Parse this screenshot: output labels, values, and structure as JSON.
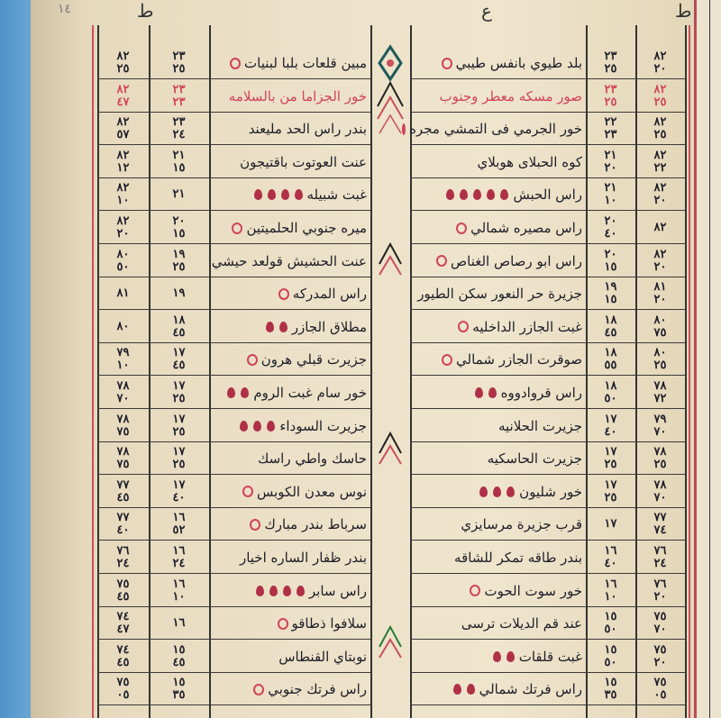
{
  "header": {
    "page_number": "١٤",
    "left_mark": "ط",
    "right_mark": "ع",
    "far_right_mark": "ط"
  },
  "left_table": {
    "rows": [
      {
        "name": "مبين قلعات بلبا لبنيات",
        "lat": "٢٣\n٢٥",
        "lon": "٨٢\n٢٥",
        "circle": true,
        "drops": 0,
        "red": false
      },
      {
        "name": "خور الجزاما من بالسلامه",
        "lat": "٢٣\n٢٣",
        "lon": "٨٢\n٤٧",
        "circle": false,
        "drops": 0,
        "red": true
      },
      {
        "name": "بندر راس الحد مليعند",
        "lat": "٢٣\n٢٤",
        "lon": "٨٢\n٥٧",
        "circle": false,
        "drops": 0,
        "red": false
      },
      {
        "name": "عنت العوتوت باقتيجون",
        "lat": "٢١\n١٥",
        "lon": "٨٢\n١٢",
        "circle": false,
        "drops": 0,
        "red": false
      },
      {
        "name": "غبت شبيله",
        "lat": "٢١",
        "lon": "٨٢\n١٠",
        "circle": false,
        "drops": 4,
        "red": false
      },
      {
        "name": "ميره جنوبي الحلميتين",
        "lat": "٢٠\n١٥",
        "lon": "٨٢\n٢٠",
        "circle": true,
        "drops": 0,
        "red": false
      },
      {
        "name": "عنت الحشيش قولعد حيشي",
        "lat": "١٩\n٢٥",
        "lon": "٨٠\n٥٠",
        "circle": false,
        "drops": 0,
        "red": false
      },
      {
        "name": "راس المدركه",
        "lat": "١٩",
        "lon": "٨١",
        "circle": true,
        "drops": 0,
        "red": false
      },
      {
        "name": "مطلاق الجازر",
        "lat": "١٨\n٤٥",
        "lon": "٨٠",
        "circle": false,
        "drops": 2,
        "red": false
      },
      {
        "name": "جزيرت قبلي هرون",
        "lat": "١٧\n٤٥",
        "lon": "٧٩\n١٠",
        "circle": true,
        "drops": 0,
        "red": false
      },
      {
        "name": "خور سام غبت الروم",
        "lat": "١٧\n٢٥",
        "lon": "٧٨\n٧٠",
        "circle": false,
        "drops": 2,
        "red": false
      },
      {
        "name": "جزيرت السوداء",
        "lat": "١٧\n٢٥",
        "lon": "٧٨\n٧٥",
        "circle": false,
        "drops": 3,
        "red": false
      },
      {
        "name": "حاسك واطي راسك",
        "lat": "١٧\n٢٥",
        "lon": "٧٨\n٧٥",
        "circle": false,
        "drops": 0,
        "red": false
      },
      {
        "name": "نوس معدن الكوبس",
        "lat": "١٧\n٤٠",
        "lon": "٧٧\n٤٥",
        "circle": true,
        "drops": 0,
        "red": false
      },
      {
        "name": "سرباط بندر مبارك",
        "lat": "١٦\n٥٢",
        "lon": "٧٧\n٤٠",
        "circle": true,
        "drops": 0,
        "red": false
      },
      {
        "name": "بندر ظفار الساره اخيار",
        "lat": "١٦\n٢٤",
        "lon": "٧٦\n٢٤",
        "circle": false,
        "drops": 0,
        "red": false
      },
      {
        "name": "راس سابر",
        "lat": "١٦\n١٠",
        "lon": "٧٥\n٤٥",
        "circle": false,
        "drops": 4,
        "red": false
      },
      {
        "name": "سلافوا ذطاقو",
        "lat": "١٦",
        "lon": "٧٤\n٤٧",
        "circle": true,
        "drops": 0,
        "red": false
      },
      {
        "name": "نوبتاي القنطاس",
        "lat": "١٥\n٤٥",
        "lon": "٧٤\n٤٥",
        "circle": false,
        "drops": 0,
        "red": false
      },
      {
        "name": "راس فرتك جنوبي",
        "lat": "١٥\n٣٥",
        "lon": "٧٥\n٠٥",
        "circle": true,
        "drops": 0,
        "red": false
      }
    ]
  },
  "right_table": {
    "rows": [
      {
        "name": "بلد طيوي بانفس طيبي",
        "lat": "٢٣\n٢٥",
        "lon": "٨٢\n٢٠",
        "circle": true,
        "drops": 0,
        "red": false
      },
      {
        "name": "صور مسكه معطر وجنوب",
        "lat": "٢٣\n٢٥",
        "lon": "٨٢\n٢٥",
        "circle": false,
        "drops": 0,
        "red": true
      },
      {
        "name": "خور الجرمي فى التمشي مجره",
        "lat": "٢٢\n٢٣",
        "lon": "٨٢\n٢٥",
        "circle": true,
        "drops": 0,
        "red": false
      },
      {
        "name": "كوه الحبلاى هوبلاي",
        "lat": "٢١\n٢٠",
        "lon": "٨٢\n٢٢",
        "circle": false,
        "drops": 0,
        "red": false
      },
      {
        "name": "راس الحبش",
        "lat": "٢١\n١٠",
        "lon": "٨٢\n٢٠",
        "circle": false,
        "drops": 5,
        "red": false
      },
      {
        "name": "راس مصيره شمالي",
        "lat": "٢٠\n٤٠",
        "lon": "٨٢",
        "circle": true,
        "drops": 0,
        "red": false
      },
      {
        "name": "راس ابو رصاص الغناص",
        "lat": "٢٠\n١٥",
        "lon": "٨٢\n٢٠",
        "circle": true,
        "drops": 0,
        "red": false
      },
      {
        "name": "جزيرة حر النعور سكن الطيور",
        "lat": "١٩\n١٥",
        "lon": "٨١\n٢٠",
        "circle": false,
        "drops": 0,
        "red": false
      },
      {
        "name": "غبت الجازر الداخليه",
        "lat": "١٨\n٤٥",
        "lon": "٨٠\n٧٥",
        "circle": true,
        "drops": 0,
        "red": false
      },
      {
        "name": "صوقرت الجازر شمالي",
        "lat": "١٨\n٥٥",
        "lon": "٨٠\n٢٥",
        "circle": true,
        "drops": 0,
        "red": false
      },
      {
        "name": "راس قروادووه",
        "lat": "١٨\n٥٠",
        "lon": "٧٨\n٧٢",
        "circle": false,
        "drops": 2,
        "red": false
      },
      {
        "name": "جزيرت الحلانيه",
        "lat": "١٧\n٤٠",
        "lon": "٧٩\n٧٠",
        "circle": false,
        "drops": 0,
        "red": false
      },
      {
        "name": "جزيرت الحاسكيه",
        "lat": "١٧\n٢٥",
        "lon": "٧٨\n٢٥",
        "circle": false,
        "drops": 0,
        "red": false
      },
      {
        "name": "خور شليون",
        "lat": "١٧\n٢٥",
        "lon": "٧٨\n٧٠",
        "circle": false,
        "drops": 3,
        "red": false
      },
      {
        "name": "قرب جزيرة مرسايزي",
        "lat": "١٧",
        "lon": "٧٧\n٧٤",
        "circle": false,
        "drops": 0,
        "red": false
      },
      {
        "name": "بندر طاقه تمكر للشاقه",
        "lat": "١٦\n٤٠",
        "lon": "٧٦\n٢٤",
        "circle": false,
        "drops": 0,
        "red": false
      },
      {
        "name": "خور سوت الحوت",
        "lat": "١٦\n١٠",
        "lon": "٧٦\n٢٠",
        "circle": true,
        "drops": 0,
        "red": false
      },
      {
        "name": "عند قم الديلات ترسى",
        "lat": "١٥\n٥٠",
        "lon": "٧٥\n٧٠",
        "circle": false,
        "drops": 0,
        "red": false
      },
      {
        "name": "غبت قلقات",
        "lat": "١٥\n٥٠",
        "lon": "٧٥\n٢٠",
        "circle": false,
        "drops": 2,
        "red": false
      },
      {
        "name": "راس فرتك شمالي",
        "lat": "١٥\n٣٥",
        "lon": "٧٥\n٠٥",
        "circle": false,
        "drops": 2,
        "red": false
      }
    ]
  },
  "colors": {
    "ink": "#1d1d28",
    "red_ink": "#d0435a",
    "paper": "#ece1c8",
    "background": "#5f9fcf"
  },
  "icons": {
    "row_markers": [
      "red-drop-icon",
      "red-circle-icon"
    ],
    "ornaments": "chevron-ornament-icon"
  }
}
